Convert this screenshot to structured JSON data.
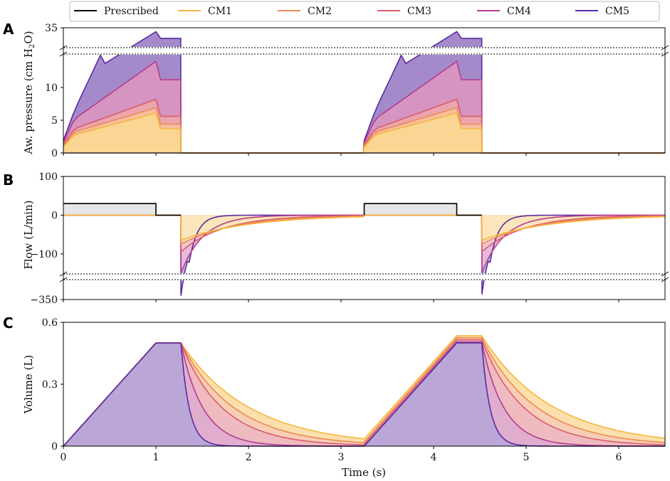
{
  "chart_data": {
    "type": "line",
    "x_label": "Time (s)",
    "x_ticks": [
      "0",
      "1",
      "2",
      "3",
      "4",
      "5",
      "6"
    ],
    "xlim": [
      0,
      6.5
    ],
    "legend": {
      "placement": "top",
      "entries": [
        {
          "name": "Prescribed",
          "color": "#000000"
        },
        {
          "name": "CM1",
          "color": "#f5b53c"
        },
        {
          "name": "CM2",
          "color": "#ee8a52"
        },
        {
          "name": "CM3",
          "color": "#d95c6c"
        },
        {
          "name": "CM4",
          "color": "#b43c8c"
        },
        {
          "name": "CM5",
          "color": "#5a2aa0"
        }
      ]
    },
    "breath": {
      "period_s": 3.25,
      "inspiration_end_s": 1.0,
      "expiration_start_s": 1.27
    },
    "panels": [
      {
        "letter": "A",
        "ylabel_parts": [
          "Aw. pressure (cm H",
          "2",
          "O)"
        ],
        "y_ticks": [
          "0",
          "5",
          "10",
          "35"
        ],
        "ylim_lower": [
          0,
          15
        ],
        "ylim_upper_top": 35,
        "axis_break": true,
        "series": [
          {
            "name": "CM1",
            "start": 0.9,
            "onset": 2.8,
            "peak": 6.1,
            "plateau": 3.7
          },
          {
            "name": "CM2",
            "start": 1.1,
            "onset": 3.2,
            "peak": 6.9,
            "plateau": 4.4
          },
          {
            "name": "CM3",
            "start": 1.3,
            "onset": 3.7,
            "peak": 8.2,
            "plateau": 5.6
          },
          {
            "name": "CM4",
            "start": 1.6,
            "onset": 5.2,
            "peak": 14.0,
            "plateau": 11.2
          },
          {
            "name": "CM5",
            "start": 1.9,
            "onset": 6.5,
            "peak": 33.0,
            "plateau": 29.5
          }
        ]
      },
      {
        "letter": "B",
        "ylabel": "Flow (L/min)",
        "y_ticks": [
          "100",
          "0",
          "−100",
          "−350"
        ],
        "ylim_main": [
          -150,
          100
        ],
        "y_bottom_value": -350,
        "axis_break": true,
        "prescribed_inspiratory_flow": 30,
        "series": [
          {
            "name": "CM1",
            "peak": -65,
            "tau": 0.72
          },
          {
            "name": "CM2",
            "peak": -75,
            "tau": 0.58
          },
          {
            "name": "CM3",
            "peak": -95,
            "tau": 0.45
          },
          {
            "name": "CM4",
            "peak": -150,
            "tau": 0.24
          },
          {
            "name": "CM5",
            "peak": -330,
            "tau": 0.09
          }
        ]
      },
      {
        "letter": "C",
        "ylabel": "Volume (L)",
        "y_ticks": [
          "0",
          "0.3",
          "0.6"
        ],
        "ylim": [
          0,
          0.6
        ],
        "series": [
          {
            "name": "CM1",
            "tidal_cycle1": 0.5,
            "tidal_cycle2": 0.535,
            "tau": 0.75,
            "residual": 0.035
          },
          {
            "name": "CM2",
            "tidal_cycle1": 0.5,
            "tidal_cycle2": 0.525,
            "tau": 0.58,
            "residual": 0.02
          },
          {
            "name": "CM3",
            "tidal_cycle1": 0.5,
            "tidal_cycle2": 0.515,
            "tau": 0.45,
            "residual": 0.01
          },
          {
            "name": "CM4",
            "tidal_cycle1": 0.5,
            "tidal_cycle2": 0.505,
            "tau": 0.24,
            "residual": 0.0
          },
          {
            "name": "CM5",
            "tidal_cycle1": 0.5,
            "tidal_cycle2": 0.5,
            "tau": 0.09,
            "residual": 0.0
          }
        ]
      }
    ]
  }
}
